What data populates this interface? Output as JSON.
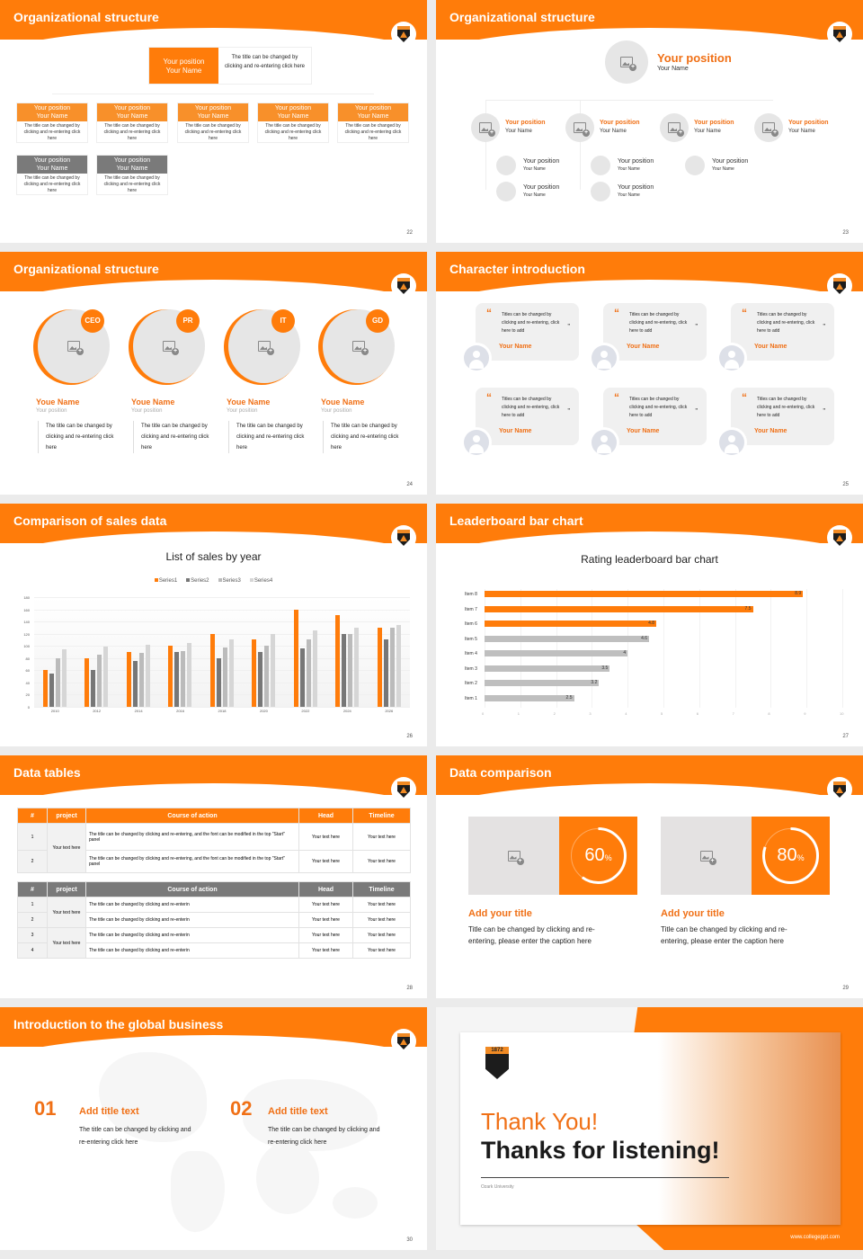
{
  "common": {
    "logo_label": "1872"
  },
  "s22": {
    "title": "Organizational structure",
    "page": "22",
    "top": {
      "pos": "Your position",
      "name": "Your Name",
      "desc": "The title can be changed by clicking and re-entering click here"
    },
    "row1": [
      {
        "pos": "Your position",
        "name": "Your Name",
        "desc": "The title can be changed by clicking and re-entering click here"
      },
      {
        "pos": "Your position",
        "name": "Your Name",
        "desc": "The title can be changed by clicking and re-entering click here"
      },
      {
        "pos": "Your position",
        "name": "Your Name",
        "desc": "The title can be changed by clicking and re-entering click here"
      },
      {
        "pos": "Your position",
        "name": "Your Name",
        "desc": "The title can be changed by clicking and re-entering click here"
      },
      {
        "pos": "Your position",
        "name": "Your Name",
        "desc": "The title can be changed by clicking and re-entering click here"
      }
    ],
    "row2": [
      {
        "pos": "Your position",
        "name": "Your Name",
        "desc": "The title can be changed by clicking and re-entering click here"
      },
      {
        "pos": "Your position",
        "name": "Your Name",
        "desc": "The title can be changed by clicking and re-entering click here"
      }
    ]
  },
  "s23": {
    "title": "Organizational structure",
    "page": "23",
    "top": {
      "pos": "Your position",
      "name": "Your Name"
    },
    "mid": [
      {
        "pos": "Your position",
        "name": "Your Name"
      },
      {
        "pos": "Your position",
        "name": "Your Name"
      },
      {
        "pos": "Your position",
        "name": "Your Name"
      },
      {
        "pos": "Your position",
        "name": "Your Name"
      }
    ],
    "sub": [
      {
        "pos": "Your position",
        "name": "Your Name"
      },
      {
        "pos": "Your position",
        "name": "Your Name"
      },
      {
        "pos": "Your position",
        "name": "Your Name"
      },
      {
        "pos": "Your position",
        "name": "Your Name"
      },
      {
        "pos": "Your position",
        "name": "Your Name"
      }
    ]
  },
  "s24": {
    "title": "Organizational structure",
    "page": "24",
    "people": [
      {
        "badge": "CEO",
        "name": "Youe Name",
        "pos": "Your position",
        "desc": "The title can be changed by clicking and re-entering click here"
      },
      {
        "badge": "PR",
        "name": "Youe Name",
        "pos": "Your position",
        "desc": "The title can be changed by clicking and re-entering click here"
      },
      {
        "badge": "IT",
        "name": "Youe Name",
        "pos": "Your position",
        "desc": "The title can be changed by clicking and re-entering click here"
      },
      {
        "badge": "GD",
        "name": "Youe Name",
        "pos": "Your position",
        "desc": "The title can be changed by clicking and re-entering click here"
      }
    ]
  },
  "s25": {
    "title": "Character introduction",
    "page": "25",
    "cards": [
      {
        "quote": "Titles can be changed by clicking and re-entering, click here to add",
        "name": "Your Name"
      },
      {
        "quote": "Titles can be changed by clicking and re-entering, click here to add",
        "name": "Your Name"
      },
      {
        "quote": "Titles can be changed by clicking and re-entering, click here to add",
        "name": "Your Name"
      },
      {
        "quote": "Titles can be changed by clicking and re-entering, click here to add",
        "name": "Your Name"
      },
      {
        "quote": "Titles can be changed by clicking and re-entering, click here to add",
        "name": "Your Name"
      },
      {
        "quote": "Titles can be changed by clicking and re-entering, click here to add",
        "name": "Your Name"
      }
    ]
  },
  "s26": {
    "title": "Comparison of sales data",
    "page": "26"
  },
  "s27": {
    "title": "Leaderboard bar chart",
    "page": "27"
  },
  "chart_data": [
    {
      "type": "bar",
      "title": "List of sales by year",
      "xlabel": "",
      "ylabel": "",
      "ylim": [
        0,
        180
      ],
      "yticks": [
        0,
        20,
        40,
        60,
        80,
        100,
        120,
        140,
        160,
        180
      ],
      "grid": true,
      "legend_position": "top",
      "categories": [
        "2010",
        "2012",
        "2014",
        "2016",
        "2018",
        "2020",
        "2022",
        "2024",
        "2026"
      ],
      "series": [
        {
          "name": "Series1",
          "color": "#ff7c0a",
          "values": [
            60,
            80,
            90,
            100,
            120,
            110,
            160,
            150,
            130
          ]
        },
        {
          "name": "Series2",
          "color": "#777777",
          "values": [
            55,
            60,
            75,
            90,
            80,
            90,
            96,
            120,
            110
          ]
        },
        {
          "name": "Series3",
          "color": "#bbbbbb",
          "values": [
            80,
            86,
            88,
            92,
            98,
            100,
            110,
            120,
            130
          ]
        },
        {
          "name": "Series4",
          "color": "#d6d6d6",
          "values": [
            95,
            99,
            102,
            105,
            110,
            120,
            126,
            130,
            135
          ]
        }
      ]
    },
    {
      "type": "bar",
      "orientation": "horizontal",
      "title": "Rating leaderboard bar chart",
      "xlim": [
        0,
        10
      ],
      "xticks": [
        0,
        1,
        2,
        3,
        4,
        5,
        6,
        7,
        8,
        9,
        10
      ],
      "categories": [
        "Item 8",
        "Item 7",
        "Item 6",
        "Item 5",
        "Item 4",
        "Item 3",
        "Item 2",
        "Item 1"
      ],
      "values": [
        8.9,
        7.5,
        4.8,
        4.6,
        4,
        3.5,
        3.2,
        2.5
      ],
      "colors": [
        "#ff7c0a",
        "#ff7c0a",
        "#ff7c0a",
        "#bfbfbf",
        "#bfbfbf",
        "#bfbfbf",
        "#bfbfbf",
        "#bfbfbf"
      ]
    }
  ],
  "s28": {
    "title": "Data tables",
    "page": "28",
    "headers": [
      "#",
      "project",
      "Course of action",
      "Head",
      "Timeline"
    ],
    "t1": {
      "project": "Your text here",
      "rows": [
        {
          "n": "1",
          "action": "The title can be changed by clicking and re-entering, and the font can be modified in the top \"Start\" panel",
          "head": "Your text here",
          "time": "Your text here"
        },
        {
          "n": "2",
          "action": "The title can be changed by clicking and re-entering, and the font can be modified in the top \"Start\" panel",
          "head": "Your text here",
          "time": "Your text here"
        }
      ]
    },
    "t2": {
      "projects": [
        "Your text here",
        "Your text here"
      ],
      "rows": [
        {
          "n": "1",
          "action": "The title can be changed by clicking and re-enterin",
          "head": "Your text here",
          "time": "Your text here"
        },
        {
          "n": "2",
          "action": "The title can be changed by clicking and re-enterin",
          "head": "Your text here",
          "time": "Your text here"
        },
        {
          "n": "3",
          "action": "The title can be changed by clicking and re-enterin",
          "head": "Your text here",
          "time": "Your text here"
        },
        {
          "n": "4",
          "action": "The title can be changed by clicking and re-enterin",
          "head": "Your text here",
          "time": "Your text here"
        }
      ]
    }
  },
  "s29": {
    "title": "Data comparison",
    "page": "29",
    "items": [
      {
        "pct": "60",
        "unit": "%",
        "value": 60,
        "heading": "Add your title",
        "text": "Title can be changed by clicking and re-entering, please enter the caption here"
      },
      {
        "pct": "80",
        "unit": "%",
        "value": 80,
        "heading": "Add your title",
        "text": "Title can be changed by clicking and re-entering, please enter the caption here"
      }
    ]
  },
  "s30": {
    "title": "Introduction to the global business",
    "page": "30",
    "items": [
      {
        "num": "01",
        "heading": "Add title text",
        "text": "The title can be changed by clicking and re-entering click here"
      },
      {
        "num": "02",
        "heading": "Add title text",
        "text": "The title can be changed by clicking and re-entering click here"
      }
    ]
  },
  "s31": {
    "thank": "Thank You!",
    "thanks": "Thanks for listening!",
    "org": "Ozark University",
    "url": "www.collegeppt.com",
    "logo_year": "1872"
  }
}
